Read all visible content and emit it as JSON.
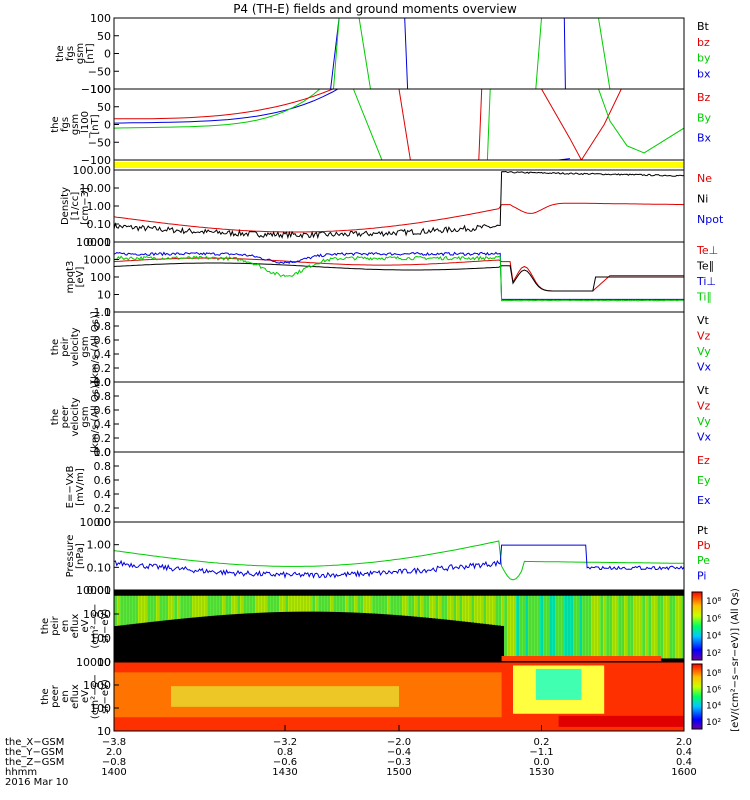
{
  "title": "P4 (TH-E) fields and ground moments overview",
  "colors": {
    "black": "#000000",
    "red": "#e00000",
    "green": "#00cc00",
    "blue": "#0000e0",
    "yellow": "#ffff00"
  },
  "chart_data": [
    {
      "type": "line",
      "panel": "fgs",
      "ylabel": [
        "the",
        "fgs",
        "gsm",
        "[nT]"
      ],
      "ylim": [
        -100,
        100
      ],
      "yticks": [
        "100",
        "50",
        "0",
        "−50",
        "−100"
      ],
      "legend": [
        {
          "name": "Bt",
          "color": "black"
        },
        {
          "name": "bz",
          "color": "red"
        },
        {
          "name": "by",
          "color": "green"
        },
        {
          "name": "bx",
          "color": "blue"
        }
      ]
    },
    {
      "type": "line",
      "panel": "fgs_dsl",
      "ylabel": [
        "the",
        "fgs",
        "gsm",
        "_l100",
        "[nT]"
      ],
      "ylim": [
        -120,
        120
      ],
      "yticks": [
        "100",
        "50",
        "0",
        "−50",
        "−100"
      ],
      "legend": [
        {
          "name": "Bz",
          "color": "red"
        },
        {
          "name": "By",
          "color": "green"
        },
        {
          "name": "Bx",
          "color": "blue"
        }
      ]
    },
    {
      "type": "bar",
      "panel": "flag",
      "color": "yellow"
    },
    {
      "type": "line",
      "panel": "density",
      "ylabel": [
        "Density",
        "[1/cc]",
        "[cm−3]"
      ],
      "yscale": "log",
      "yticks": [
        "100.00",
        "10.00",
        "1.00",
        "0.10",
        "0.01"
      ],
      "legend": [
        {
          "name": "Ne",
          "color": "red"
        },
        {
          "name": "Ni",
          "color": "black"
        },
        {
          "name": "Npot",
          "color": "blue"
        }
      ]
    },
    {
      "type": "line",
      "panel": "temperature",
      "ylabel": [
        "mpqt3",
        "[eV]"
      ],
      "yscale": "log",
      "yticks": [
        "10000",
        "1000",
        "100",
        "10",
        "1"
      ],
      "legend": [
        {
          "name": "Te⊥",
          "color": "red"
        },
        {
          "name": "Te∥",
          "color": "black"
        },
        {
          "name": "Ti⊥",
          "color": "blue"
        },
        {
          "name": "Ti∥",
          "color": "green"
        }
      ]
    },
    {
      "type": "line",
      "panel": "peir_velocity",
      "ylabel": [
        "the",
        "peir",
        "velocity",
        "gsm",
        "[km/s (All Qs)]"
      ],
      "ylim": [
        0,
        1
      ],
      "yticks": [
        "1.0",
        "0.8",
        "0.6",
        "0.4",
        "0.2",
        "0.0"
      ],
      "legend": [
        {
          "name": "Vt",
          "color": "black"
        },
        {
          "name": "Vz",
          "color": "red"
        },
        {
          "name": "Vy",
          "color": "green"
        },
        {
          "name": "Vx",
          "color": "blue"
        }
      ]
    },
    {
      "type": "line",
      "panel": "peer_velocity",
      "ylabel": [
        "the",
        "peer",
        "velocity",
        "gsm",
        "[km/s (All Qs)]"
      ],
      "ylim": [
        0,
        1
      ],
      "yticks": [
        "1.0",
        "0.8",
        "0.6",
        "0.4",
        "0.2",
        "0.0"
      ],
      "legend": [
        {
          "name": "Vt",
          "color": "black"
        },
        {
          "name": "Vz",
          "color": "red"
        },
        {
          "name": "Vy",
          "color": "green"
        },
        {
          "name": "Vx",
          "color": "blue"
        }
      ]
    },
    {
      "type": "line",
      "panel": "efield",
      "ylabel": [
        "E=−VxB",
        "[mV/m]"
      ],
      "ylim": [
        0,
        1
      ],
      "yticks": [
        "1.0",
        "0.8",
        "0.6",
        "0.4",
        "0.2",
        "0.0"
      ],
      "legend": [
        {
          "name": "Ez",
          "color": "red"
        },
        {
          "name": "Ey",
          "color": "green"
        },
        {
          "name": "Ex",
          "color": "blue"
        }
      ]
    },
    {
      "type": "line",
      "panel": "pressure",
      "ylabel": [
        "Pressure",
        "[nPa]"
      ],
      "yscale": "log",
      "yticks": [
        "10.00",
        "1.00",
        "0.10",
        "0.01"
      ],
      "legend": [
        {
          "name": "Pt",
          "color": "black"
        },
        {
          "name": "Pb",
          "color": "red"
        },
        {
          "name": "Pe",
          "color": "green"
        },
        {
          "name": "Pi",
          "color": "blue"
        }
      ]
    },
    {
      "type": "heatmap",
      "panel": "peir_spectrogram",
      "ylabel": [
        "the",
        "peir",
        "en",
        "eflux",
        "eV",
        "(cm²−s−",
        "sr−eV)"
      ],
      "yscale": "log",
      "yticks": [
        "10000",
        "1000",
        "100",
        "10"
      ]
    },
    {
      "type": "heatmap",
      "panel": "peer_spectrogram",
      "ylabel": [
        "the",
        "peer",
        "en",
        "eflux",
        "eV",
        "(cm²−s−",
        "sr−eV)"
      ],
      "yscale": "log",
      "yticks": [
        "10000",
        "1000",
        "100",
        "10"
      ]
    }
  ],
  "colorbar": {
    "label": "[eV/(cm²−s−sr−eV)] (All Qs)",
    "upper_ticks": [
      "10⁸",
      "10⁶",
      "10⁴",
      "10²"
    ],
    "lower_ticks": [
      "10⁸",
      "10⁶",
      "10⁴",
      "10²"
    ]
  },
  "xaxis": {
    "rows": [
      {
        "label": "the_X−GSM",
        "values": [
          "−3.8",
          "−3.2",
          "−2.0",
          "0.2",
          "2.0"
        ]
      },
      {
        "label": "the_Y−GSM",
        "values": [
          "2.0",
          "0.8",
          "−0.4",
          "−1.1",
          "0.4"
        ]
      },
      {
        "label": "the_Z−GSM",
        "values": [
          "−0.8",
          "−0.6",
          "−0.3",
          "0.0",
          "0.4"
        ]
      },
      {
        "label": "hhmm",
        "values": [
          "1400",
          "1430",
          "1500",
          "1530",
          "1600"
        ]
      }
    ],
    "date": "2016 Mar 10"
  }
}
